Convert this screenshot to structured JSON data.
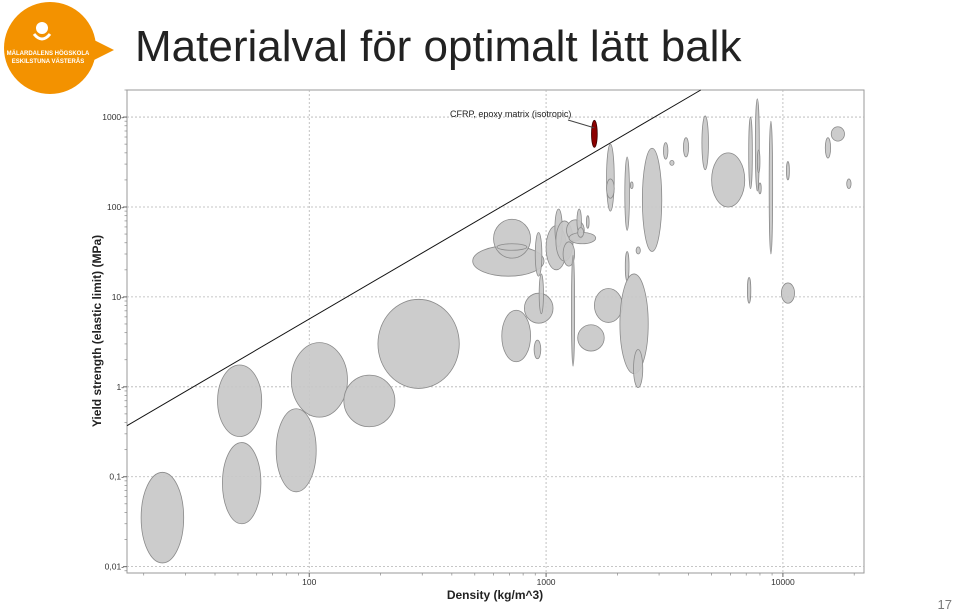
{
  "slide": {
    "title": "Materialval för optimalt lätt balk",
    "page_number": "17"
  },
  "logo": {
    "line1": "MÄLARDALENS HÖGSKOLA",
    "line2": "ESKILSTUNA VÄSTERÅS",
    "color": "#f39200"
  },
  "chart_data": {
    "type": "scatter",
    "xlabel": "Density (kg/m^3)",
    "ylabel": "Yield strength (elastic limit) (MPa)",
    "x_scale": "log",
    "y_scale": "log",
    "xlim": [
      17,
      22000
    ],
    "ylim": [
      0.0085,
      2000
    ],
    "x_ticks": [
      {
        "value": 100,
        "label": "100"
      },
      {
        "value": 1000,
        "label": "1000"
      },
      {
        "value": 10000,
        "label": "10000"
      }
    ],
    "y_ticks": [
      {
        "value": 0.01,
        "label": "0,01"
      },
      {
        "value": 0.1,
        "label": "0,1"
      },
      {
        "value": 1,
        "label": "1"
      },
      {
        "value": 10,
        "label": "10"
      },
      {
        "value": 100,
        "label": "100"
      },
      {
        "value": 1000,
        "label": "1000"
      }
    ],
    "grid": true,
    "guideline": {
      "points": [
        [
          17,
          0.37
        ],
        [
          4500,
          2000
        ]
      ]
    },
    "annotation": {
      "text": "CFRP, epoxy matrix (isotropic)",
      "points_to": [
        1600,
        650
      ]
    },
    "bubble_color": "#c8c8c8",
    "highlight_color": "#8b0000",
    "bubbles": [
      {
        "x": 24,
        "y": 0.035,
        "x_range": [
          19.5,
          29.5
        ],
        "y_range": [
          0.011,
          0.112
        ],
        "highlight": false
      },
      {
        "x": 52,
        "y": 0.085,
        "x_range": [
          43,
          62.5
        ],
        "y_range": [
          0.03,
          0.24
        ],
        "highlight": false
      },
      {
        "x": 51,
        "y": 0.7,
        "x_range": [
          41,
          63
        ],
        "y_range": [
          0.28,
          1.75
        ],
        "highlight": false
      },
      {
        "x": 88,
        "y": 0.2,
        "x_range": [
          72.5,
          107
        ],
        "y_range": [
          0.068,
          0.57
        ],
        "highlight": false
      },
      {
        "x": 110,
        "y": 1.2,
        "x_range": [
          84,
          145
        ],
        "y_range": [
          0.46,
          3.1
        ],
        "highlight": false
      },
      {
        "x": 180,
        "y": 0.7,
        "x_range": [
          140,
          230
        ],
        "y_range": [
          0.36,
          1.35
        ],
        "highlight": false
      },
      {
        "x": 290,
        "y": 3.0,
        "x_range": [
          195,
          430
        ],
        "y_range": [
          0.96,
          9.4
        ],
        "highlight": false
      },
      {
        "x": 700,
        "y": 25,
        "x_range": [
          490,
          980
        ],
        "y_range": [
          17,
          37
        ],
        "highlight": false
      },
      {
        "x": 720,
        "y": 45,
        "x_range": [
          600,
          860
        ],
        "y_range": [
          27,
          73
        ],
        "highlight": false
      },
      {
        "x": 720,
        "y": 36,
        "x_range": [
          620,
          830
        ],
        "y_range": [
          33,
          39
        ],
        "highlight": false
      },
      {
        "x": 750,
        "y": 3.7,
        "x_range": [
          650,
          860
        ],
        "y_range": [
          1.9,
          7.1
        ],
        "highlight": false
      },
      {
        "x": 930,
        "y": 7.5,
        "x_range": [
          810,
          1070
        ],
        "y_range": [
          5.1,
          11
        ],
        "highlight": false
      },
      {
        "x": 920,
        "y": 2.6,
        "x_range": [
          890,
          950
        ],
        "y_range": [
          2.05,
          3.3
        ],
        "highlight": false
      },
      {
        "x": 930,
        "y": 30,
        "x_range": [
          900,
          960
        ],
        "y_range": [
          17,
          52
        ],
        "highlight": false
      },
      {
        "x": 955,
        "y": 11,
        "x_range": [
          935,
          975
        ],
        "y_range": [
          6.5,
          18
        ],
        "highlight": false
      },
      {
        "x": 1100,
        "y": 35,
        "x_range": [
          1000,
          1220
        ],
        "y_range": [
          20,
          62
        ],
        "highlight": false
      },
      {
        "x": 1130,
        "y": 58,
        "x_range": [
          1090,
          1170
        ],
        "y_range": [
          36,
          95
        ],
        "highlight": false
      },
      {
        "x": 1200,
        "y": 42,
        "x_range": [
          1100,
          1300
        ],
        "y_range": [
          25,
          70
        ],
        "highlight": false
      },
      {
        "x": 1250,
        "y": 30,
        "x_range": [
          1180,
          1320
        ],
        "y_range": [
          22,
          41
        ],
        "highlight": false
      },
      {
        "x": 1330,
        "y": 55,
        "x_range": [
          1220,
          1450
        ],
        "y_range": [
          42,
          72
        ],
        "highlight": false
      },
      {
        "x": 1420,
        "y": 45,
        "x_range": [
          1250,
          1620
        ],
        "y_range": [
          39,
          52
        ],
        "highlight": false
      },
      {
        "x": 1380,
        "y": 70,
        "x_range": [
          1350,
          1410
        ],
        "y_range": [
          52,
          95
        ],
        "highlight": false
      },
      {
        "x": 1500,
        "y": 68,
        "x_range": [
          1480,
          1520
        ],
        "y_range": [
          58,
          80
        ],
        "highlight": false
      },
      {
        "x": 1400,
        "y": 52,
        "x_range": [
          1360,
          1440
        ],
        "y_range": [
          46,
          59
        ],
        "highlight": false
      },
      {
        "x": 1300,
        "y": 7.0,
        "x_range": [
          1280,
          1320
        ],
        "y_range": [
          1.7,
          29
        ],
        "highlight": false
      },
      {
        "x": 1550,
        "y": 3.5,
        "x_range": [
          1360,
          1760
        ],
        "y_range": [
          2.5,
          4.9
        ],
        "highlight": false
      },
      {
        "x": 1600,
        "y": 650,
        "x_range": [
          1555,
          1645
        ],
        "y_range": [
          460,
          920
        ],
        "highlight": true
      },
      {
        "x": 1830,
        "y": 8.0,
        "x_range": [
          1600,
          2100
        ],
        "y_range": [
          5.2,
          12.4
        ],
        "highlight": false
      },
      {
        "x": 1870,
        "y": 210,
        "x_range": [
          1800,
          1940
        ],
        "y_range": [
          90,
          500
        ],
        "highlight": false
      },
      {
        "x": 1870,
        "y": 160,
        "x_range": [
          1800,
          1940
        ],
        "y_range": [
          125,
          205
        ],
        "highlight": false
      },
      {
        "x": 2200,
        "y": 140,
        "x_range": [
          2150,
          2250
        ],
        "y_range": [
          55,
          360
        ],
        "highlight": false
      },
      {
        "x": 2200,
        "y": 22,
        "x_range": [
          2160,
          2240
        ],
        "y_range": [
          15,
          32
        ],
        "highlight": false
      },
      {
        "x": 2300,
        "y": 175,
        "x_range": [
          2270,
          2330
        ],
        "y_range": [
          160,
          190
        ],
        "highlight": false
      },
      {
        "x": 2350,
        "y": 5.0,
        "x_range": [
          2050,
          2700
        ],
        "y_range": [
          1.4,
          18
        ],
        "highlight": false
      },
      {
        "x": 2450,
        "y": 1.6,
        "x_range": [
          2340,
          2560
        ],
        "y_range": [
          0.98,
          2.6
        ],
        "highlight": false
      },
      {
        "x": 2450,
        "y": 33,
        "x_range": [
          2400,
          2500
        ],
        "y_range": [
          30,
          36
        ],
        "highlight": false
      },
      {
        "x": 2800,
        "y": 120,
        "x_range": [
          2550,
          3080
        ],
        "y_range": [
          32,
          450
        ],
        "highlight": false
      },
      {
        "x": 3200,
        "y": 400,
        "x_range": [
          3130,
          3270
        ],
        "y_range": [
          340,
          520
        ],
        "highlight": false
      },
      {
        "x": 3400,
        "y": 310,
        "x_range": [
          3330,
          3470
        ],
        "y_range": [
          290,
          330
        ],
        "highlight": false
      },
      {
        "x": 3900,
        "y": 460,
        "x_range": [
          3800,
          4000
        ],
        "y_range": [
          360,
          590
        ],
        "highlight": false
      },
      {
        "x": 4700,
        "y": 500,
        "x_range": [
          4550,
          4850
        ],
        "y_range": [
          260,
          1030
        ],
        "highlight": false
      },
      {
        "x": 5900,
        "y": 200,
        "x_range": [
          5000,
          6900
        ],
        "y_range": [
          100,
          400
        ],
        "highlight": false
      },
      {
        "x": 7200,
        "y": 12,
        "x_range": [
          7080,
          7320
        ],
        "y_range": [
          8.5,
          16.5
        ],
        "highlight": false
      },
      {
        "x": 7300,
        "y": 400,
        "x_range": [
          7170,
          7430
        ],
        "y_range": [
          160,
          1000
        ],
        "highlight": false
      },
      {
        "x": 7800,
        "y": 500,
        "x_range": [
          7650,
          7950
        ],
        "y_range": [
          150,
          1600
        ],
        "highlight": false
      },
      {
        "x": 7900,
        "y": 320,
        "x_range": [
          7800,
          8000
        ],
        "y_range": [
          240,
          430
        ],
        "highlight": false
      },
      {
        "x": 8000,
        "y": 160,
        "x_range": [
          7900,
          8100
        ],
        "y_range": [
          140,
          185
        ],
        "highlight": false
      },
      {
        "x": 8900,
        "y": 160,
        "x_range": [
          8750,
          9050
        ],
        "y_range": [
          30,
          900
        ],
        "highlight": false
      },
      {
        "x": 10500,
        "y": 11,
        "x_range": [
          9850,
          11200
        ],
        "y_range": [
          8.5,
          14.3
        ],
        "highlight": false
      },
      {
        "x": 10500,
        "y": 250,
        "x_range": [
          10350,
          10650
        ],
        "y_range": [
          200,
          320
        ],
        "highlight": false
      },
      {
        "x": 15500,
        "y": 450,
        "x_range": [
          15100,
          15900
        ],
        "y_range": [
          350,
          590
        ],
        "highlight": false
      },
      {
        "x": 17000,
        "y": 650,
        "x_range": [
          16000,
          18200
        ],
        "y_range": [
          540,
          780
        ],
        "highlight": false
      },
      {
        "x": 19000,
        "y": 180,
        "x_range": [
          18600,
          19400
        ],
        "y_range": [
          160,
          205
        ],
        "highlight": false
      }
    ]
  }
}
